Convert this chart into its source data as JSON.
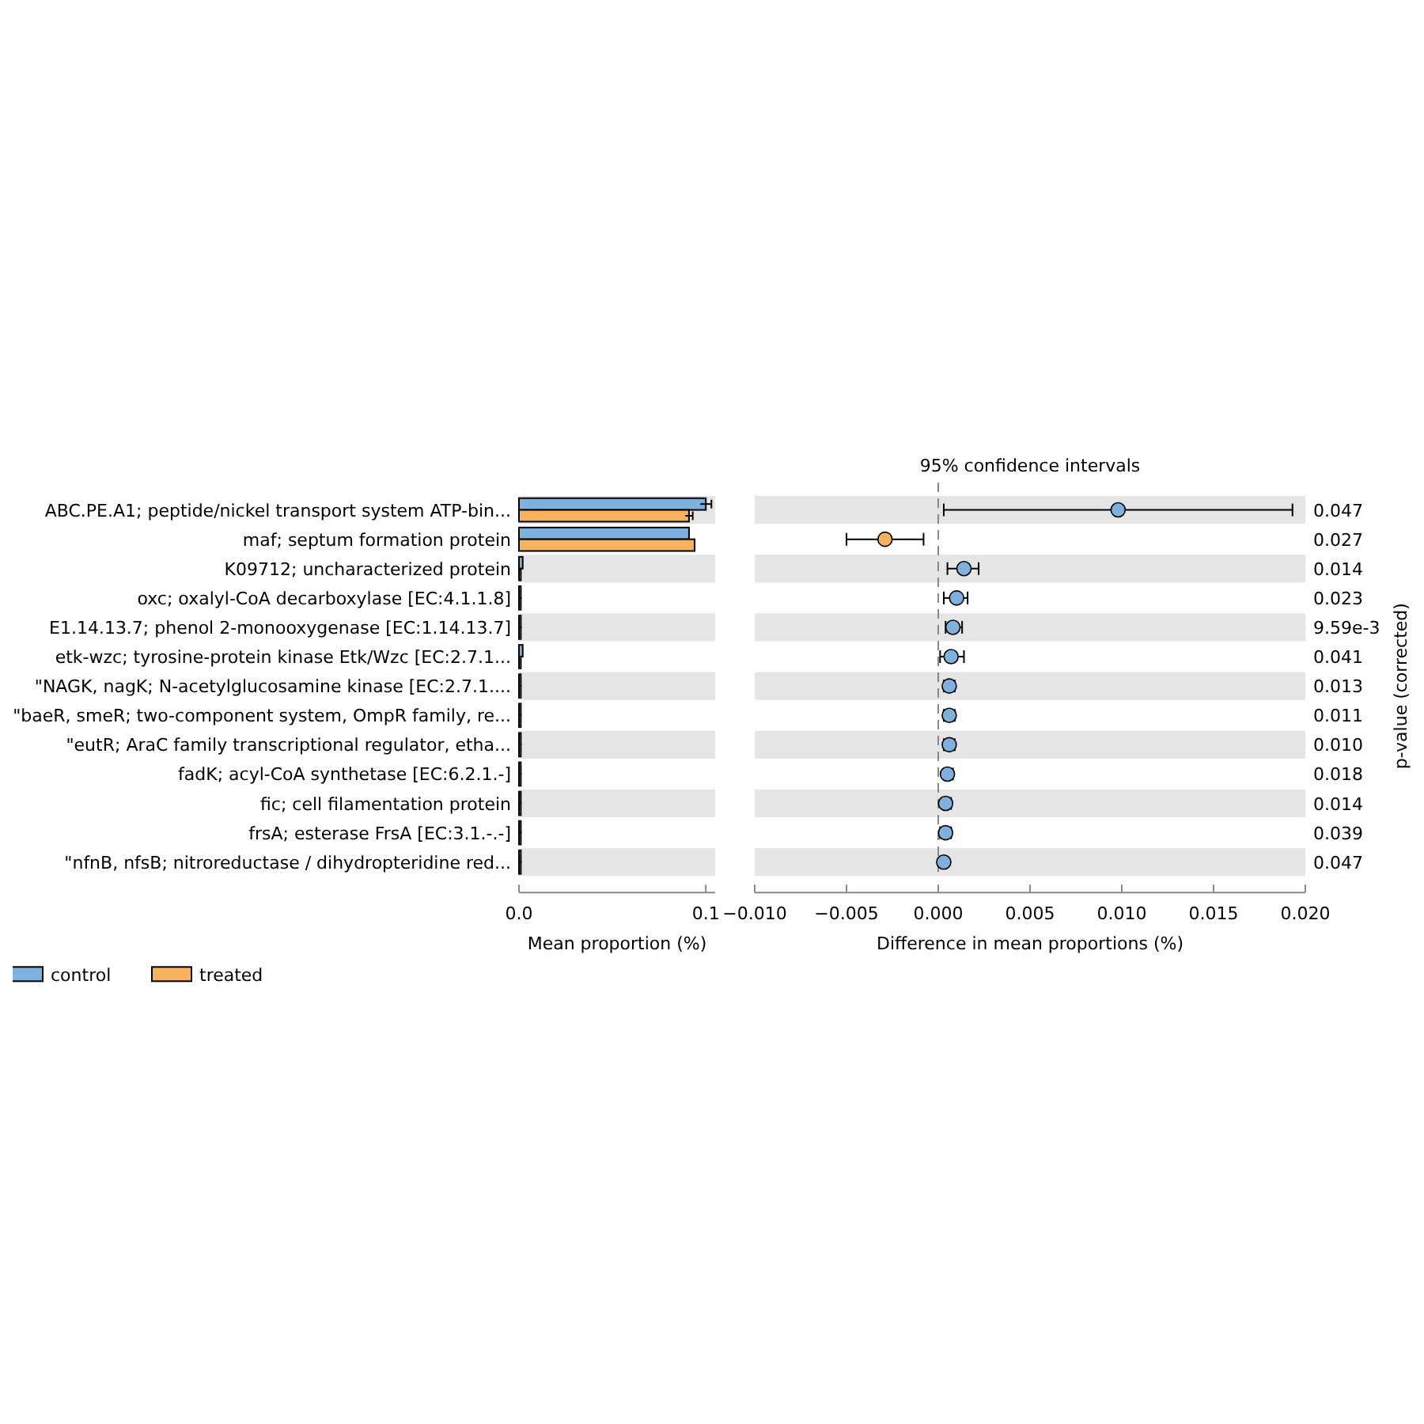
{
  "chart_data": [
    {
      "type": "bar",
      "orientation": "horizontal",
      "xlabel": "Mean proportion (%)",
      "categories": [
        "ABC.PE.A1; peptide/nickel transport system ATP-bin...",
        "maf; septum formation protein",
        "K09712; uncharacterized protein",
        "oxc; oxalyl-CoA decarboxylase [EC:4.1.1.8]",
        "E1.14.13.7; phenol 2-monooxygenase [EC:1.14.13.7]",
        "etk-wzc; tyrosine-protein kinase Etk/Wzc [EC:2.7.1...",
        "\"NAGK, nagK; N-acetylglucosamine kinase [EC:2.7.1....",
        "\"baeR, smeR; two-component system, OmpR family, re...",
        "\"eutR; AraC family transcriptional regulator, etha...",
        "fadK; acyl-CoA synthetase [EC:6.2.1.-]",
        "fic; cell filamentation protein",
        "frsA; esterase FrsA [EC:3.1.-.-]",
        "\"nfnB, nfsB; nitroreductase / dihydropteridine red..."
      ],
      "series": [
        {
          "name": "control",
          "color": "#7eb1dd",
          "values": [
            0.1,
            0.091,
            0.002,
            0.001,
            0.001,
            0.002,
            0.001,
            0.001,
            0.001,
            0.001,
            0.001,
            0.001,
            0.001
          ],
          "errors": [
            0.003,
            null,
            null,
            null,
            null,
            null,
            null,
            null,
            null,
            null,
            null,
            null,
            null
          ]
        },
        {
          "name": "treated",
          "color": "#f6b25c",
          "values": [
            0.091,
            0.094,
            0.001,
            0.001,
            0.001,
            0.001,
            0.001,
            0.001,
            0.001,
            0.001,
            0.001,
            0.001,
            0.001
          ],
          "errors": [
            0.002,
            null,
            null,
            null,
            null,
            null,
            null,
            null,
            null,
            null,
            null,
            null,
            null
          ]
        }
      ],
      "xlim": [
        0,
        0.105
      ],
      "xticks": [
        {
          "value": 0,
          "label": "0.0"
        },
        {
          "value": 0.1,
          "label": "0.1"
        }
      ],
      "legend": "bottom left"
    },
    {
      "type": "scatter",
      "orientation": "horizontal",
      "title": "95% confidence intervals",
      "xlabel": "Difference in mean proportions (%)",
      "y2label": "p-value (corrected)",
      "y2_categories": [
        "0.047",
        "0.027",
        "0.014",
        "0.023",
        "9.59e-3",
        "0.041",
        "0.013",
        "0.011",
        "0.010",
        "0.018",
        "0.014",
        "0.039",
        "0.047"
      ],
      "values": [
        0.0098,
        -0.0029,
        0.0014,
        0.001,
        0.0008,
        0.0007,
        0.0006,
        0.0006,
        0.0006,
        0.0005,
        0.0004,
        0.0004,
        0.0003
      ],
      "errors": [
        [
          0.0003,
          0.0193
        ],
        [
          -0.005,
          -0.0008
        ],
        [
          0.0005,
          0.0022
        ],
        [
          0.0003,
          0.0016
        ],
        [
          0.0004,
          0.0013
        ],
        [
          0.0001,
          0.0014
        ],
        [
          0.0003,
          0.0009
        ],
        [
          0.0003,
          0.0009
        ],
        [
          0.0003,
          0.0009
        ],
        [
          0.0003,
          0.0008
        ],
        [
          0.0002,
          0.0007
        ],
        [
          0.0001,
          0.0007
        ],
        [
          0.0001,
          0.0005
        ]
      ],
      "colors": [
        "#7eb1dd",
        "#f6b25c",
        "#7eb1dd",
        "#7eb1dd",
        "#7eb1dd",
        "#7eb1dd",
        "#7eb1dd",
        "#7eb1dd",
        "#7eb1dd",
        "#7eb1dd",
        "#7eb1dd",
        "#7eb1dd",
        "#7eb1dd"
      ],
      "marker": "circle",
      "xlim": [
        -0.01,
        0.02
      ],
      "xticks": [
        {
          "value": -0.01,
          "label": "−0.010"
        },
        {
          "value": -0.005,
          "label": "−0.005"
        },
        {
          "value": 0,
          "label": "0.000"
        },
        {
          "value": 0.005,
          "label": "0.005"
        },
        {
          "value": 0.01,
          "label": "0.010"
        },
        {
          "value": 0.015,
          "label": "0.015"
        },
        {
          "value": 0.02,
          "label": "0.020"
        }
      ],
      "ref_lines": [
        {
          "axis": "x",
          "value": 0,
          "color": "#888888",
          "line_style": "dashed"
        }
      ],
      "tick_labels": "x"
    }
  ]
}
